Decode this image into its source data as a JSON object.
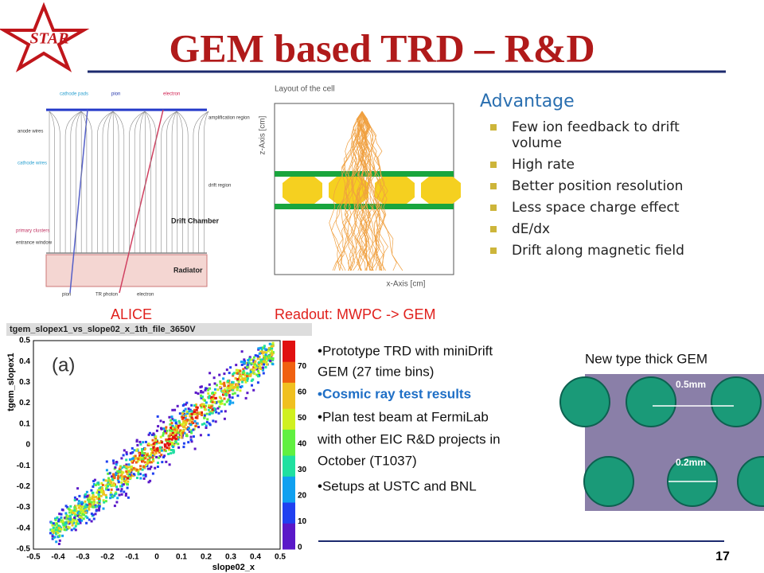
{
  "header": {
    "logo": "STAR",
    "title": "GEM based TRD – R&D"
  },
  "diagram": {
    "labels": [
      "cathode pads",
      "pion",
      "electron",
      "amplification region",
      "anode wires",
      "cathode wires",
      "drift region",
      "Drift Chamber",
      "primary clusters",
      "entrance window",
      "Radiator",
      "TR photon",
      "electron",
      "pion"
    ],
    "caption": "ALICE"
  },
  "cell": {
    "title": "Layout of the cell",
    "xaxis": "x-Axis [cm]",
    "yaxis": "z-Axis [cm]",
    "caption": "Readout: MWPC -> GEM"
  },
  "advantage": {
    "heading": "Advantage",
    "items": [
      [
        "Few ion feedback to drift",
        "volume"
      ],
      [
        "High rate"
      ],
      [
        "Better position resolution"
      ],
      [
        "Less space charge effect"
      ],
      [
        "dE/dx"
      ],
      [
        "Drift along magnetic field"
      ]
    ]
  },
  "histogram": {
    "title": "tgem_slopex1_vs_slope02_x_1th_file_3650V",
    "panel": "(a)",
    "xlabel": "slope02_x",
    "ylabel": "tgem_slopex1",
    "xticks": [
      "-0.5",
      "-0.4",
      "-0.3",
      "-0.2",
      "-0.1",
      "0",
      "0.1",
      "0.2",
      "0.3",
      "0.4",
      "0.5"
    ],
    "yticks": [
      "-0.5",
      "-0.4",
      "-0.3",
      "-0.2",
      "-0.1",
      "0",
      "0.1",
      "0.2",
      "0.3",
      "0.4",
      "0.5"
    ],
    "zticks": [
      "0",
      "10",
      "20",
      "30",
      "40",
      "50",
      "60",
      "70"
    ]
  },
  "notes": {
    "lines": [
      "•Prototype TRD with miniDrift",
      "GEM (27 time bins)",
      "•Cosmic ray test results",
      "•Plan test beam at FermiLab",
      "with other EIC R&D projects in",
      "October (T1037)",
      "•Setups at USTC and BNL"
    ]
  },
  "gem": {
    "caption": "New type thick GEM",
    "pitch": "0.5mm",
    "hole": "0.2mm"
  },
  "footer": {
    "page": "17"
  }
}
